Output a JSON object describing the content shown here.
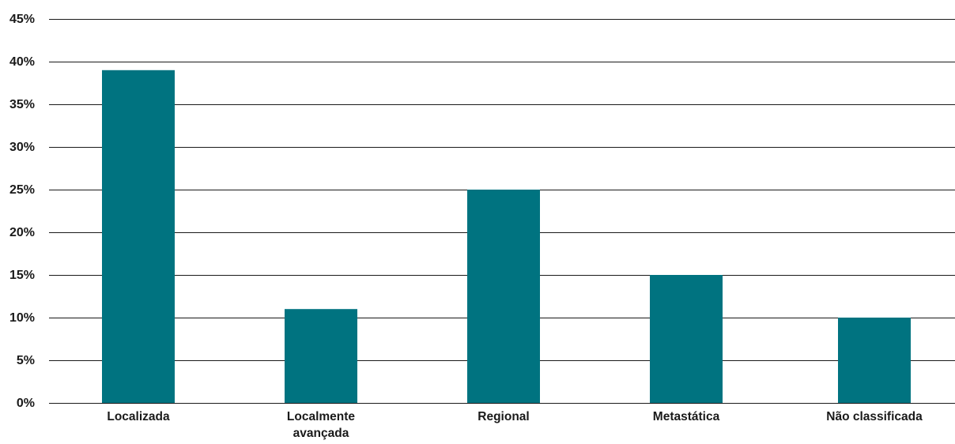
{
  "chart_data": {
    "type": "bar",
    "title": "",
    "xlabel": "",
    "ylabel": "",
    "categories": [
      [
        "Localizada"
      ],
      [
        "Localmente",
        "avançada"
      ],
      [
        "Regional"
      ],
      [
        "Metastática"
      ],
      [
        "Não classificada"
      ]
    ],
    "values": [
      39,
      11,
      25,
      15,
      10
    ],
    "ylim": [
      0,
      45
    ],
    "yticks": [
      0,
      5,
      10,
      15,
      20,
      25,
      30,
      35,
      40,
      45
    ],
    "ytick_labels": [
      "0%",
      "5%",
      "10%",
      "15%",
      "20%",
      "25%",
      "30%",
      "35%",
      "40%",
      "45%"
    ],
    "grid": true,
    "legend": "none",
    "bar_color": "#007380"
  }
}
